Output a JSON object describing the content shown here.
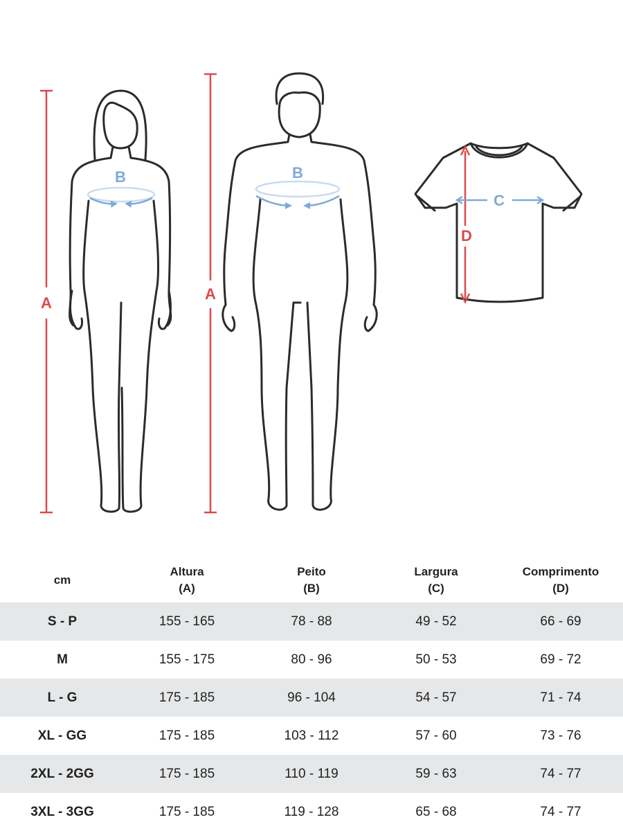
{
  "figures": {
    "labels": {
      "height": "A",
      "chest": "B",
      "width": "C",
      "length": "D"
    },
    "icons": [
      "woman-figure-icon",
      "man-figure-icon",
      "tshirt-icon"
    ],
    "colors": {
      "outline": "#2b2b2b",
      "height_marker": "#dd4a4a",
      "measure_marker": "#7faad6",
      "row_shade": "#e6e7e8"
    }
  },
  "table": {
    "header": [
      {
        "line1": "cm",
        "line2": ""
      },
      {
        "line1": "Altura",
        "line2": "(A)"
      },
      {
        "line1": "Peito",
        "line2": "(B)"
      },
      {
        "line1": "Largura",
        "line2": "(C)"
      },
      {
        "line1": "Comprimento",
        "line2": "(D)"
      }
    ],
    "rows": [
      [
        "S - P",
        "155 - 165",
        "78 - 88",
        "49 - 52",
        "66 - 69"
      ],
      [
        "M",
        "155 - 175",
        "80 - 96",
        "50 - 53",
        "69 - 72"
      ],
      [
        "L - G",
        "175 - 185",
        "96 - 104",
        "54 - 57",
        "71 - 74"
      ],
      [
        "XL - GG",
        "175 - 185",
        "103 - 112",
        "57 - 60",
        "73 - 76"
      ],
      [
        "2XL - 2GG",
        "175 - 185",
        "110 - 119",
        "59 - 63",
        "74 - 77"
      ],
      [
        "3XL - 3GG",
        "175 - 185",
        "119 - 128",
        "65 - 68",
        "74 - 77"
      ]
    ]
  }
}
